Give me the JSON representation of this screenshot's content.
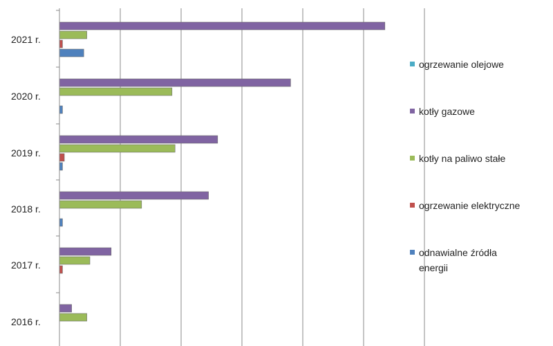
{
  "chart_data": {
    "type": "bar",
    "orientation": "horizontal",
    "categories": [
      "2016 r.",
      "2017 r.",
      "2018 r.",
      "2019 r.",
      "2020 r.",
      "2021 r."
    ],
    "series": [
      {
        "name": "ogrzewanie olejowe",
        "color": "#4bacc6",
        "values": [
          0,
          0,
          0,
          0,
          0,
          0
        ]
      },
      {
        "name": "kotły gazowe",
        "color": "#8064a2",
        "values": [
          2,
          8.5,
          24.5,
          26,
          38,
          53.5
        ]
      },
      {
        "name": "kotły na paliwo stałe",
        "color": "#9bbb59",
        "values": [
          4.5,
          5,
          13.5,
          19,
          18.5,
          4.5
        ]
      },
      {
        "name": "ogrzewanie elektryczne",
        "color": "#c0504d",
        "values": [
          0,
          0.5,
          0,
          0.8,
          0,
          0.5
        ]
      },
      {
        "name": "odnawialne źródła energii",
        "name_lines": [
          "odnawialne źródła",
          "energii"
        ],
        "color": "#4f81bd",
        "values": [
          0,
          0,
          0.5,
          0.5,
          0.5,
          4
        ]
      }
    ],
    "xlim": [
      0,
      60
    ],
    "grid": true,
    "legend": "right"
  }
}
